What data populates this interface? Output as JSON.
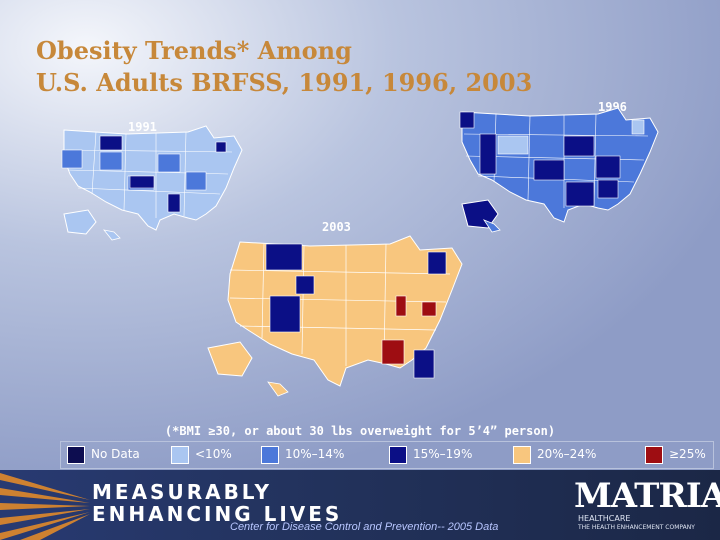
{
  "title": {
    "line1": "Obesity Trends* Among",
    "line2": "U.S. Adults BRFSS, 1991, 1996, 2003"
  },
  "maps": [
    {
      "year": "1991",
      "fill": "#aac6f1",
      "accent": "#4c78da",
      "dark": "#0b0f86"
    },
    {
      "year": "1996",
      "fill": "#4c78da",
      "accent": "#0b0f86",
      "dark": "#aac6f1"
    },
    {
      "year": "2003",
      "fill": "#f8c67e",
      "accent": "#0b0f86",
      "dark": "#9e0d12"
    }
  ],
  "footnote": "(*BMI ≥30, or about 30 lbs overweight for 5’4” person)",
  "legend": [
    {
      "label": "No Data",
      "color": "#0d0d50"
    },
    {
      "label": "<10%",
      "color": "#aac6f1"
    },
    {
      "label": "10%–14%",
      "color": "#4c78da"
    },
    {
      "label": "15%–19%",
      "color": "#0b0f86"
    },
    {
      "label": "20%–24%",
      "color": "#f8c67e"
    },
    {
      "label": "≥25%",
      "color": "#9e0d12"
    }
  ],
  "banner": {
    "line1": "MEASURABLY",
    "line2": "ENHANCING LIVES",
    "source": "Center for Disease Control and Prevention-- 2005 Data"
  },
  "logo": {
    "name": "MATRIA",
    "sub": "HEALTHCARE",
    "tagline": "THE HEALTH ENHANCEMENT COMPANY"
  }
}
